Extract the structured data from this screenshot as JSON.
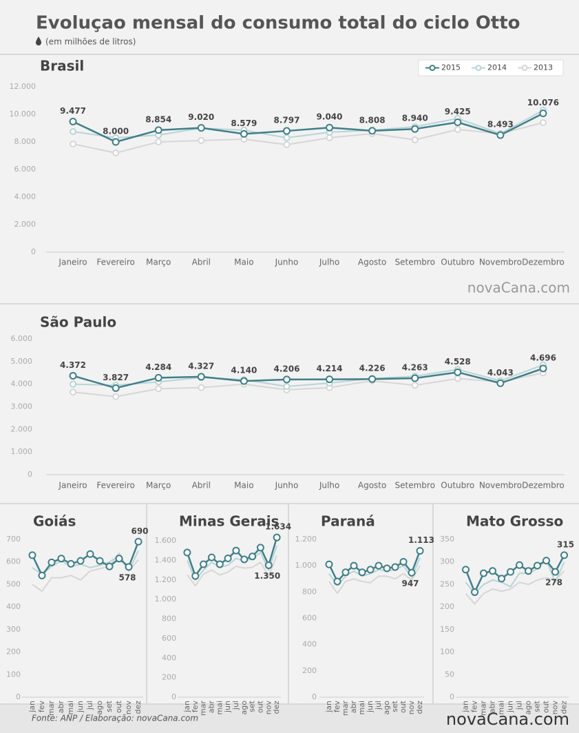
{
  "title": "Evoluçao mensal do consumo total do ciclo Otto",
  "subtitle": "(em milhões de litros)",
  "source": "Fonte: ANP / Elaboração:  novaCana.com",
  "brand": "novaCana.com",
  "chart_data": [
    {
      "type": "line",
      "title": "Brasil",
      "legend": "top-right",
      "grid": false,
      "categories": [
        "Janeiro",
        "Fevereiro",
        "Março",
        "Abril",
        "Maio",
        "Junho",
        "Julho",
        "Agosto",
        "Setembro",
        "Outubro",
        "Novembro",
        "Dezembro"
      ],
      "ylim": [
        0,
        12000
      ],
      "yticks": [
        0,
        {
          "value": 2000,
          "label": "2.000"
        },
        {
          "value": 4000,
          "label": "4.000"
        },
        {
          "value": 6000,
          "label": "6.000"
        },
        {
          "value": 8000,
          "label": "8.000"
        },
        {
          "value": 10000,
          "label": "10.000"
        },
        {
          "value": 12000,
          "label": "12.000"
        }
      ],
      "series": [
        {
          "name": "2015",
          "color": "#3f7e86",
          "markers": true,
          "values": [
            9477,
            8000,
            8854,
            9020,
            8579,
            8797,
            9040,
            8808,
            8940,
            9425,
            8493,
            10076
          ],
          "value_labels": [
            "9.477",
            "8.000",
            "8.854",
            "9.020",
            "8.579",
            "8.797",
            "9.040",
            "8.808",
            "8.940",
            "9.425",
            "8.493",
            "10.076"
          ]
        },
        {
          "name": "2014",
          "color": "#b8d4d7",
          "markers": true,
          "values": [
            8750,
            8300,
            8500,
            9000,
            8850,
            8300,
            8700,
            8850,
            9100,
            9700,
            8600,
            10300
          ]
        },
        {
          "name": "2013",
          "color": "#d6d6d6",
          "markers": true,
          "values": [
            7850,
            7200,
            8000,
            8100,
            8200,
            7800,
            8300,
            8600,
            8150,
            8900,
            8600,
            9400
          ]
        }
      ]
    },
    {
      "type": "line",
      "title": "São Paulo",
      "grid": false,
      "categories": [
        "Janeiro",
        "Fevereiro",
        "Março",
        "Abril",
        "Maio",
        "Junho",
        "Julho",
        "Agosto",
        "Setembro",
        "Outubro",
        "Novembro",
        "Dezembro"
      ],
      "ylim": [
        0,
        6000
      ],
      "yticks": [
        0,
        {
          "value": 1000,
          "label": "1.000"
        },
        {
          "value": 2000,
          "label": "2.000"
        },
        {
          "value": 3000,
          "label": "3.000"
        },
        {
          "value": 4000,
          "label": "4.000"
        },
        {
          "value": 5000,
          "label": "5.000"
        },
        {
          "value": 6000,
          "label": "6.000"
        }
      ],
      "series": [
        {
          "name": "2015",
          "color": "#3f7e86",
          "markers": true,
          "values": [
            4372,
            3827,
            4284,
            4327,
            4140,
            4206,
            4214,
            4226,
            4263,
            4528,
            4043,
            4696
          ],
          "value_labels": [
            "4.372",
            "3.827",
            "4.284",
            "4.327",
            "4.140",
            "4.206",
            "4.214",
            "4.226",
            "4.263",
            "4.528",
            "4.043",
            "4.696"
          ]
        },
        {
          "name": "2014",
          "color": "#b8d4d7",
          "markers": true,
          "values": [
            4000,
            3950,
            4100,
            4300,
            4200,
            3900,
            4050,
            4250,
            4350,
            4650,
            4150,
            4850
          ]
        },
        {
          "name": "2013",
          "color": "#d6d6d6",
          "markers": true,
          "values": [
            3650,
            3450,
            3800,
            3850,
            4000,
            3750,
            3850,
            4150,
            3950,
            4250,
            4100,
            4500
          ]
        }
      ]
    },
    {
      "type": "line",
      "title": "Goiás",
      "grid": false,
      "categories": [
        "jan",
        "fev",
        "mar",
        "abr",
        "mai",
        "jun",
        "jul",
        "ago",
        "set",
        "out",
        "nov",
        "dez"
      ],
      "ylim": [
        0,
        700
      ],
      "yticks": [
        0,
        100,
        200,
        300,
        400,
        500,
        600,
        700
      ],
      "series": [
        {
          "name": "2015",
          "color": "#3f7e86",
          "markers": true,
          "values": [
            630,
            540,
            598,
            615,
            592,
            605,
            635,
            605,
            580,
            615,
            578,
            690
          ],
          "value_labels": [
            null,
            null,
            null,
            null,
            null,
            null,
            null,
            null,
            null,
            null,
            "578",
            "690"
          ]
        },
        {
          "name": "2014",
          "color": "#b8d4d7",
          "markers": false,
          "values": [
            575,
            545,
            580,
            605,
            580,
            590,
            575,
            585,
            600,
            630,
            560,
            650
          ]
        },
        {
          "name": "2013",
          "color": "#d6d6d6",
          "markers": false,
          "values": [
            500,
            470,
            530,
            530,
            540,
            520,
            560,
            570,
            580,
            640,
            560,
            610
          ]
        }
      ]
    },
    {
      "type": "line",
      "title": "Minas Gerais",
      "grid": false,
      "categories": [
        "jan",
        "fev",
        "mar",
        "abr",
        "mai",
        "jun",
        "jul",
        "ago",
        "set",
        "out",
        "nov",
        "dez"
      ],
      "ylim": [
        0,
        1600
      ],
      "yticks": [
        0,
        200,
        400,
        600,
        800,
        {
          "value": 1000,
          "label": "1.000"
        },
        {
          "value": 1200,
          "label": "1.200"
        },
        {
          "value": 1400,
          "label": "1.400"
        },
        {
          "value": 1600,
          "label": "1.600"
        }
      ],
      "series": [
        {
          "name": "2015",
          "color": "#3f7e86",
          "markers": true,
          "values": [
            1480,
            1240,
            1360,
            1430,
            1360,
            1420,
            1500,
            1410,
            1440,
            1530,
            1350,
            1634
          ],
          "value_labels": [
            null,
            null,
            null,
            null,
            null,
            null,
            null,
            null,
            null,
            null,
            "1.350",
            "1.634"
          ]
        },
        {
          "name": "2014",
          "color": "#b8d4d7",
          "markers": false,
          "values": [
            1400,
            1200,
            1300,
            1380,
            1330,
            1350,
            1420,
            1390,
            1420,
            1480,
            1300,
            1550
          ]
        },
        {
          "name": "2013",
          "color": "#d6d6d6",
          "markers": false,
          "values": [
            1250,
            1140,
            1260,
            1300,
            1250,
            1280,
            1340,
            1320,
            1330,
            1380,
            1240,
            1450
          ]
        }
      ]
    },
    {
      "type": "line",
      "title": "Paraná",
      "grid": false,
      "categories": [
        "jan",
        "fev",
        "mar",
        "abr",
        "mai",
        "jun",
        "jul",
        "ago",
        "set",
        "out",
        "nov",
        "dez"
      ],
      "ylim": [
        0,
        1200
      ],
      "yticks": [
        0,
        200,
        400,
        600,
        800,
        {
          "value": 1000,
          "label": "1.000"
        },
        {
          "value": 1200,
          "label": "1.200"
        }
      ],
      "series": [
        {
          "name": "2015",
          "color": "#3f7e86",
          "markers": true,
          "values": [
            1010,
            880,
            950,
            1000,
            950,
            970,
            1000,
            980,
            990,
            1030,
            947,
            1113
          ],
          "value_labels": [
            null,
            null,
            null,
            null,
            null,
            null,
            null,
            null,
            null,
            null,
            "947",
            "1.113"
          ]
        },
        {
          "name": "2014",
          "color": "#b8d4d7",
          "markers": false,
          "values": [
            940,
            850,
            920,
            960,
            920,
            940,
            970,
            960,
            970,
            1000,
            910,
            1060
          ]
        },
        {
          "name": "2013",
          "color": "#d6d6d6",
          "markers": false,
          "values": [
            880,
            790,
            880,
            900,
            880,
            870,
            920,
            920,
            900,
            940,
            890,
            1000
          ]
        }
      ]
    },
    {
      "type": "line",
      "title": "Mato Grosso",
      "grid": false,
      "categories": [
        "jan",
        "fev",
        "mar",
        "abr",
        "mai",
        "jun",
        "jul",
        "ago",
        "set",
        "out",
        "nov",
        "dez"
      ],
      "ylim": [
        0,
        350
      ],
      "yticks": [
        0,
        50,
        100,
        150,
        200,
        250,
        300,
        350
      ],
      "series": [
        {
          "name": "2015",
          "color": "#3f7e86",
          "markers": true,
          "values": [
            283,
            233,
            275,
            280,
            263,
            278,
            293,
            280,
            292,
            303,
            278,
            315
          ],
          "value_labels": [
            null,
            null,
            null,
            null,
            null,
            null,
            null,
            null,
            null,
            null,
            "278",
            "315"
          ]
        },
        {
          "name": "2014",
          "color": "#b8d4d7",
          "markers": false,
          "values": [
            255,
            230,
            250,
            260,
            255,
            245,
            275,
            275,
            285,
            305,
            255,
            300
          ]
        },
        {
          "name": "2013",
          "color": "#d6d6d6",
          "markers": false,
          "values": [
            230,
            207,
            230,
            240,
            235,
            240,
            255,
            250,
            260,
            265,
            260,
            280
          ]
        }
      ]
    }
  ]
}
